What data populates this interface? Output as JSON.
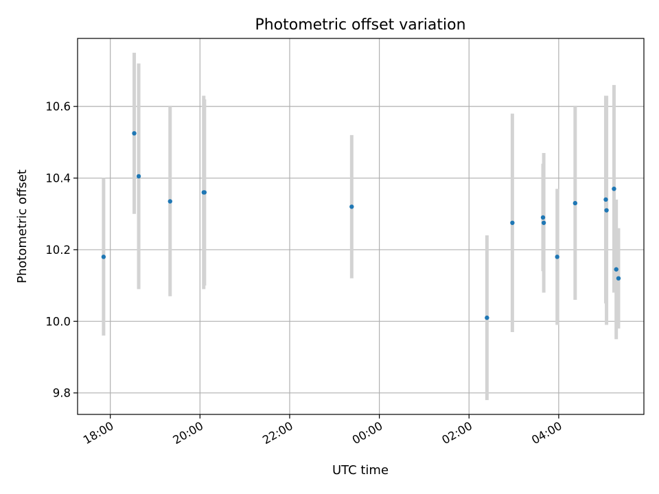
{
  "chart_data": {
    "type": "scatter",
    "title": "Photometric offset variation",
    "xlabel": "UTC time",
    "ylabel": "Photometric offset",
    "x_ticks": [
      "18:00",
      "20:00",
      "22:00",
      "00:00",
      "02:00",
      "04:00"
    ],
    "x_tick_hours": [
      18,
      20,
      22,
      24,
      26,
      28
    ],
    "xlim_hours": [
      17.27,
      29.9
    ],
    "y_ticks": [
      "9.8",
      "10.0",
      "10.2",
      "10.4",
      "10.6"
    ],
    "y_tick_values": [
      9.8,
      10.0,
      10.2,
      10.4,
      10.6
    ],
    "ylim": [
      9.74,
      10.79
    ],
    "grid": true,
    "colors": {
      "marker": "#1f77b4",
      "errorbar": "#d3d3d3",
      "grid": "#b0b0b0"
    },
    "series": [
      {
        "points": [
          {
            "time": "17:51",
            "y": 10.18,
            "err_low": 9.96,
            "err_high": 10.4
          },
          {
            "time": "18:32",
            "y": 10.525,
            "err_low": 10.3,
            "err_high": 10.75
          },
          {
            "time": "18:38",
            "y": 10.405,
            "err_low": 10.09,
            "err_high": 10.72
          },
          {
            "time": "19:20",
            "y": 10.335,
            "err_low": 10.07,
            "err_high": 10.6
          },
          {
            "time": "20:05",
            "y": 10.36,
            "err_low": 10.09,
            "err_high": 10.63
          },
          {
            "time": "20:06",
            "y": 10.36,
            "err_low": 10.1,
            "err_high": 10.62
          },
          {
            "time": "23:23",
            "y": 10.32,
            "err_low": 10.12,
            "err_high": 10.52
          },
          {
            "time": "02:24",
            "y": 10.01,
            "err_low": 9.78,
            "err_high": 10.24
          },
          {
            "time": "02:58",
            "y": 10.275,
            "err_low": 9.97,
            "err_high": 10.58
          },
          {
            "time": "03:39",
            "y": 10.29,
            "err_low": 10.14,
            "err_high": 10.44
          },
          {
            "time": "03:40",
            "y": 10.275,
            "err_low": 10.08,
            "err_high": 10.47
          },
          {
            "time": "03:58",
            "y": 10.18,
            "err_low": 9.99,
            "err_high": 10.37
          },
          {
            "time": "04:22",
            "y": 10.33,
            "err_low": 10.06,
            "err_high": 10.6
          },
          {
            "time": "05:03",
            "y": 10.34,
            "err_low": 10.05,
            "err_high": 10.63
          },
          {
            "time": "05:04",
            "y": 10.31,
            "err_low": 9.99,
            "err_high": 10.63
          },
          {
            "time": "05:14",
            "y": 10.37,
            "err_low": 10.08,
            "err_high": 10.66
          },
          {
            "time": "05:17",
            "y": 10.145,
            "err_low": 9.95,
            "err_high": 10.34
          },
          {
            "time": "05:20",
            "y": 10.12,
            "err_low": 9.98,
            "err_high": 10.26
          }
        ]
      }
    ]
  }
}
